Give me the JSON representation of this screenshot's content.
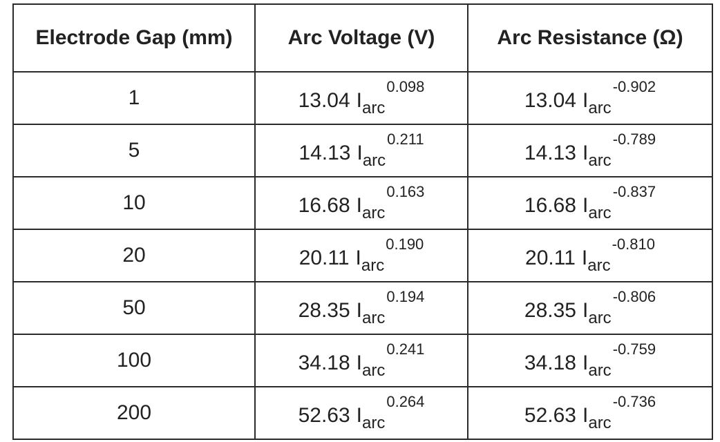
{
  "table": {
    "header": [
      "Electrode Gap (mm)",
      "Arc Voltage (V)",
      "Arc Resistance (Ω)"
    ],
    "rows": [
      [
        1,
        {
          "coef": "13.04",
          "base": "I",
          "sub": "arc",
          "exp": "0.098"
        },
        {
          "coef": "13.04",
          "base": "I",
          "sub": "arc",
          "exp": "-0.902"
        }
      ],
      [
        5,
        {
          "coef": "14.13",
          "base": "I",
          "sub": "arc",
          "exp": "0.211"
        },
        {
          "coef": "14.13",
          "base": "I",
          "sub": "arc",
          "exp": "-0.789"
        }
      ],
      [
        10,
        {
          "coef": "16.68",
          "base": "I",
          "sub": "arc",
          "exp": "0.163"
        },
        {
          "coef": "16.68",
          "base": "I",
          "sub": "arc",
          "exp": "-0.837"
        }
      ],
      [
        20,
        {
          "coef": "20.11",
          "base": "I",
          "sub": "arc",
          "exp": "0.190"
        },
        {
          "coef": "20.11",
          "base": "I",
          "sub": "arc",
          "exp": "-0.810"
        }
      ],
      [
        50,
        {
          "coef": "28.35",
          "base": "I",
          "sub": "arc",
          "exp": "0.194"
        },
        {
          "coef": "28.35",
          "base": "I",
          "sub": "arc",
          "exp": "-0.806"
        }
      ],
      [
        100,
        {
          "coef": "34.18",
          "base": "I",
          "sub": "arc",
          "exp": "0.241"
        },
        {
          "coef": "34.18",
          "base": "I",
          "sub": "arc",
          "exp": "-0.759"
        }
      ],
      [
        200,
        {
          "coef": "52.63",
          "base": "I",
          "sub": "arc",
          "exp": "0.264"
        },
        {
          "coef": "52.63",
          "base": "I",
          "sub": "arc",
          "exp": "-0.736"
        }
      ]
    ]
  }
}
